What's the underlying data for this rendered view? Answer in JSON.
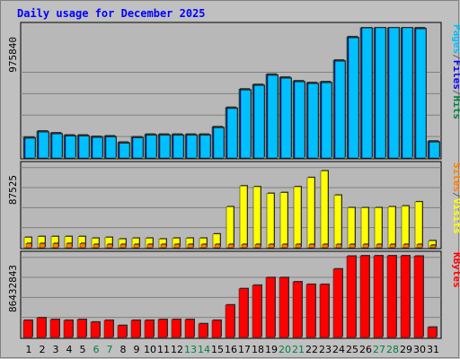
{
  "chart_data": {
    "type": "bar",
    "title": "Daily usage for December 2025",
    "categories": [
      "1",
      "2",
      "3",
      "4",
      "5",
      "6",
      "7",
      "8",
      "9",
      "10",
      "11",
      "12",
      "13",
      "14",
      "15",
      "16",
      "17",
      "18",
      "19",
      "20",
      "21",
      "22",
      "23",
      "24",
      "25",
      "26",
      "27",
      "28",
      "29",
      "30",
      "31"
    ],
    "weekend_days": [
      "6",
      "7",
      "13",
      "14",
      "20",
      "21",
      "27",
      "28"
    ],
    "panels": [
      {
        "id": "hits",
        "ymax_label": "975840",
        "ymax": 975840,
        "side_labels": [
          {
            "text": "Pages",
            "color": "#00c0ff"
          },
          {
            "text": "/",
            "color": "#606060"
          },
          {
            "text": "Files",
            "color": "#0000ff"
          },
          {
            "text": "/",
            "color": "#606060"
          },
          {
            "text": "Hits",
            "color": "#008040"
          }
        ],
        "series": [
          {
            "name": "Hits",
            "color": "#008040",
            "values": [
              236700,
              306500,
              285600,
              260600,
              260600,
              244700,
              251100,
              179400,
              240200,
              270100,
              270100,
              270100,
              270100,
              270100,
              355300,
              575300,
              784500,
              836500,
              952400,
              919500,
              877700,
              857500,
              867700,
              1113500,
              1379500,
              1491000,
              1501100,
              1501100,
              1501100,
              1481200,
              192300
            ]
          },
          {
            "name": "Files",
            "color": "#0000ff",
            "values": [
              230200,
              300000,
              279100,
              254100,
              254100,
              238200,
              244600,
              172900,
              233700,
              263600,
              263600,
              263600,
              263600,
              263600,
              348800,
              568800,
              778000,
              830000,
              945900,
              913000,
              871200,
              851000,
              861200,
              1107000,
              1373000,
              1484500,
              1494600,
              1494600,
              1494600,
              1474700,
              185800
            ]
          },
          {
            "name": "Pages",
            "color": "#00c0ff",
            "values": [
              223700,
              293500,
              272600,
              247600,
              247600,
              231700,
              238100,
              166400,
              227200,
              257100,
              257100,
              257100,
              257100,
              257100,
              342300,
              562300,
              771500,
              823500,
              939400,
              906500,
              864700,
              844500,
              854700,
              1100500,
              1366500,
              1478000,
              1488100,
              1488100,
              1488100,
              1468200,
              179300
            ]
          }
        ]
      },
      {
        "id": "visits",
        "ymax_label": "87525",
        "ymax": 87525,
        "side_labels": [
          {
            "text": "Sites",
            "color": "#ff8000"
          },
          {
            "text": "/",
            "color": "#606060"
          },
          {
            "text": "Visits",
            "color": "#ffff00"
          }
        ],
        "series": [
          {
            "name": "Visits",
            "color": "#ffff00",
            "values": [
              11300,
              12200,
              12200,
              12200,
              12200,
              10400,
              11300,
              9500,
              10400,
              10400,
              9500,
              10400,
              10400,
              10400,
              15000,
              44700,
              67500,
              66600,
              59300,
              60200,
              66600,
              76600,
              83900,
              57400,
              43700,
              43700,
              43700,
              44700,
              45600,
              50100,
              7700
            ]
          },
          {
            "name": "Sites",
            "color": "#ff8000",
            "values": [
              4600,
              4600,
              4600,
              4600,
              4600,
              3600,
              3600,
              3600,
              3600,
              3600,
              3600,
              3600,
              3600,
              3600,
              3600,
              3600,
              3600,
              3600,
              3600,
              3600,
              3600,
              3600,
              3600,
              3600,
              3600,
              3600,
              3600,
              3600,
              3600,
              3600,
              2700
            ]
          }
        ]
      },
      {
        "id": "kbytes",
        "ymax_label": "86432843",
        "ymax": 86432843,
        "side_labels": [
          {
            "text": "KBytes",
            "color": "#ff0000"
          }
        ],
        "series": [
          {
            "name": "KBytes",
            "color": "#ff0000",
            "values": [
              18460000,
              21230000,
              19380000,
              18460000,
              19380000,
              16610000,
              18460000,
              12920000,
              18460000,
              18460000,
              19380000,
              19380000,
              19380000,
              14770000,
              18460000,
              35080000,
              52610000,
              56310000,
              64620000,
              64620000,
              60000000,
              57230000,
              57230000,
              73850000,
              87700000,
              89550000,
              89550000,
              89550000,
              89550000,
              87700000,
              11070000
            ]
          }
        ]
      }
    ]
  }
}
